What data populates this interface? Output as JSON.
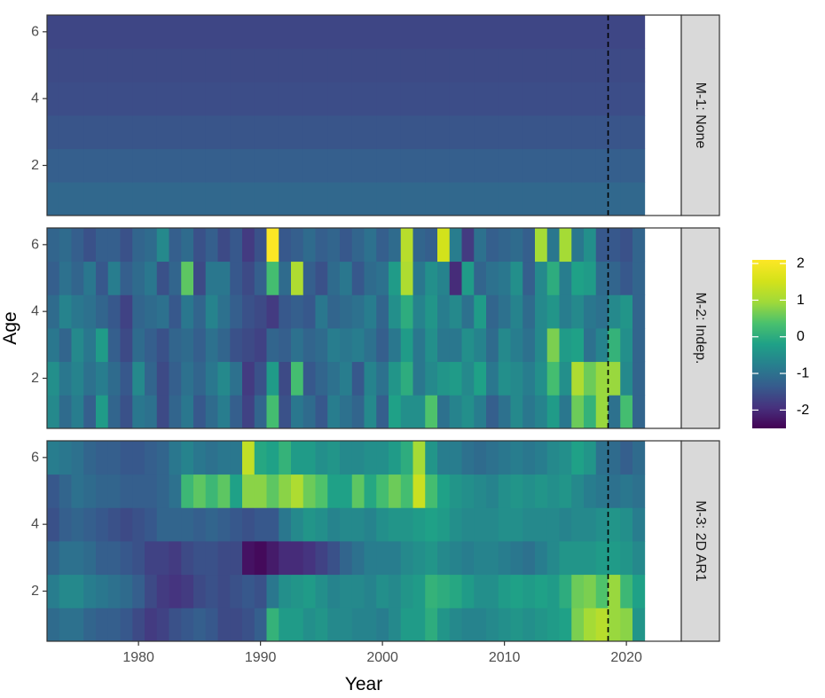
{
  "chart_data": {
    "type": "heatmap",
    "xlabel": "Year",
    "ylabel": "Age",
    "x_ticks": [
      1980,
      1990,
      2000,
      2010,
      2020
    ],
    "y_ticks": [
      2,
      4,
      6
    ],
    "xlim": [
      1972.5,
      2024.5
    ],
    "ylim": [
      0.5,
      6.5
    ],
    "years": [
      1973,
      2021
    ],
    "ages": [
      1,
      6
    ],
    "reference_line": {
      "year": 2018.5,
      "style": "dashed"
    },
    "colorscale": "viridis",
    "color_range": [
      -2.5,
      2.1
    ],
    "legend": {
      "placement": "right",
      "ticks": [
        "2",
        "1",
        "0",
        "-1",
        "-2"
      ],
      "tick_values": [
        2,
        1,
        0,
        -1,
        -2
      ]
    },
    "panels": [
      {
        "label": "M-1:  None",
        "values": [
          [
            -1.15,
            -1.15,
            -1.15,
            -1.15,
            -1.15,
            -1.15,
            -1.15,
            -1.15,
            -1.15,
            -1.15,
            -1.15,
            -1.15,
            -1.15,
            -1.15,
            -1.15,
            -1.15,
            -1.15,
            -1.15,
            -1.15,
            -1.15,
            -1.15,
            -1.15,
            -1.15,
            -1.15,
            -1.15,
            -1.15,
            -1.15,
            -1.15,
            -1.15,
            -1.15,
            -1.15,
            -1.15,
            -1.15,
            -1.15,
            -1.15,
            -1.15,
            -1.15,
            -1.15,
            -1.15,
            -1.15,
            -1.15,
            -1.15,
            -1.15,
            -1.15,
            -1.15,
            -1.15,
            -1.15,
            -1.15,
            -1.15
          ],
          [
            -1.3,
            -1.3,
            -1.3,
            -1.3,
            -1.3,
            -1.3,
            -1.3,
            -1.3,
            -1.3,
            -1.3,
            -1.3,
            -1.3,
            -1.3,
            -1.3,
            -1.3,
            -1.3,
            -1.3,
            -1.3,
            -1.3,
            -1.3,
            -1.3,
            -1.3,
            -1.3,
            -1.3,
            -1.3,
            -1.3,
            -1.3,
            -1.3,
            -1.3,
            -1.3,
            -1.3,
            -1.3,
            -1.3,
            -1.3,
            -1.3,
            -1.3,
            -1.3,
            -1.3,
            -1.3,
            -1.3,
            -1.3,
            -1.3,
            -1.3,
            -1.3,
            -1.3,
            -1.3,
            -1.3,
            -1.3,
            -1.3
          ],
          [
            -1.45,
            -1.45,
            -1.45,
            -1.45,
            -1.45,
            -1.45,
            -1.45,
            -1.45,
            -1.45,
            -1.45,
            -1.45,
            -1.45,
            -1.45,
            -1.45,
            -1.45,
            -1.45,
            -1.45,
            -1.45,
            -1.45,
            -1.45,
            -1.45,
            -1.45,
            -1.45,
            -1.45,
            -1.45,
            -1.45,
            -1.45,
            -1.45,
            -1.45,
            -1.45,
            -1.45,
            -1.45,
            -1.45,
            -1.45,
            -1.45,
            -1.45,
            -1.45,
            -1.45,
            -1.45,
            -1.45,
            -1.45,
            -1.45,
            -1.45,
            -1.45,
            -1.45,
            -1.45,
            -1.45,
            -1.45,
            -1.45
          ],
          [
            -1.55,
            -1.55,
            -1.55,
            -1.55,
            -1.55,
            -1.55,
            -1.55,
            -1.55,
            -1.55,
            -1.55,
            -1.55,
            -1.55,
            -1.55,
            -1.55,
            -1.55,
            -1.55,
            -1.55,
            -1.55,
            -1.55,
            -1.55,
            -1.55,
            -1.55,
            -1.55,
            -1.55,
            -1.55,
            -1.55,
            -1.55,
            -1.55,
            -1.55,
            -1.55,
            -1.55,
            -1.55,
            -1.55,
            -1.55,
            -1.55,
            -1.55,
            -1.55,
            -1.55,
            -1.55,
            -1.55,
            -1.55,
            -1.55,
            -1.55,
            -1.55,
            -1.55,
            -1.55,
            -1.55,
            -1.55,
            -1.55
          ],
          [
            -1.6,
            -1.6,
            -1.6,
            -1.6,
            -1.6,
            -1.6,
            -1.6,
            -1.6,
            -1.6,
            -1.6,
            -1.6,
            -1.6,
            -1.6,
            -1.6,
            -1.6,
            -1.6,
            -1.6,
            -1.6,
            -1.6,
            -1.6,
            -1.6,
            -1.6,
            -1.6,
            -1.6,
            -1.6,
            -1.6,
            -1.6,
            -1.6,
            -1.6,
            -1.6,
            -1.6,
            -1.6,
            -1.6,
            -1.6,
            -1.6,
            -1.6,
            -1.6,
            -1.6,
            -1.6,
            -1.6,
            -1.6,
            -1.6,
            -1.6,
            -1.6,
            -1.6,
            -1.6,
            -1.6,
            -1.6,
            -1.6
          ],
          [
            -1.65,
            -1.65,
            -1.65,
            -1.65,
            -1.65,
            -1.65,
            -1.65,
            -1.65,
            -1.65,
            -1.65,
            -1.65,
            -1.65,
            -1.65,
            -1.65,
            -1.65,
            -1.65,
            -1.65,
            -1.65,
            -1.65,
            -1.65,
            -1.65,
            -1.65,
            -1.65,
            -1.65,
            -1.65,
            -1.65,
            -1.65,
            -1.65,
            -1.65,
            -1.65,
            -1.65,
            -1.65,
            -1.65,
            -1.65,
            -1.65,
            -1.65,
            -1.65,
            -1.65,
            -1.65,
            -1.65,
            -1.65,
            -1.65,
            -1.65,
            -1.65,
            -1.65,
            -1.65,
            -1.65,
            -1.65,
            -1.65
          ]
        ]
      },
      {
        "label": "M-2:  Indep.",
        "values": [
          [
            -0.6,
            -1.1,
            -0.8,
            -1.3,
            -0.3,
            -1.2,
            -1.5,
            -0.9,
            -1.0,
            -1.6,
            -1.2,
            -0.9,
            -1.4,
            -1.1,
            -0.8,
            -1.3,
            -1.7,
            -1.2,
            0.3,
            -1.5,
            -0.9,
            -1.1,
            -1.4,
            -0.8,
            -1.0,
            -1.2,
            -0.6,
            -1.3,
            -0.2,
            -0.5,
            -0.5,
            0.4,
            -1.0,
            -0.7,
            -0.5,
            -0.8,
            -1.3,
            -1.0,
            -0.6,
            -0.9,
            -0.7,
            -0.3,
            -0.9,
            0.6,
            0.1,
            0.9,
            -1.0,
            0.3,
            -1.2
          ],
          [
            -0.5,
            -0.9,
            -0.7,
            -1.0,
            -0.8,
            -1.1,
            -1.4,
            -0.6,
            -1.2,
            -1.6,
            -1.3,
            -1.0,
            -1.2,
            -0.9,
            -0.6,
            -1.0,
            -1.8,
            -1.5,
            -0.3,
            -1.6,
            0.3,
            -1.4,
            -1.2,
            -1.0,
            -0.8,
            -1.4,
            -0.7,
            -1.0,
            -0.4,
            0.0,
            -0.9,
            -0.6,
            -0.4,
            -0.3,
            -0.6,
            -0.2,
            -0.9,
            -0.5,
            -0.6,
            -0.8,
            -0.5,
            0.3,
            -0.5,
            1.1,
            0.6,
            0.9,
            0.9,
            -0.6,
            -1.2
          ],
          [
            -0.9,
            -1.2,
            -0.6,
            -0.9,
            -0.3,
            -1.3,
            -1.6,
            -1.1,
            -1.3,
            -1.5,
            -1.2,
            -1.1,
            -1.3,
            -1.0,
            -1.2,
            -1.5,
            -1.6,
            -1.7,
            -1.2,
            -1.3,
            -1.0,
            -1.2,
            -1.1,
            -0.8,
            -0.9,
            -0.8,
            -1.0,
            -1.3,
            -0.9,
            -0.3,
            -0.9,
            -0.5,
            -0.9,
            -0.9,
            -0.5,
            -0.7,
            -1.1,
            -0.6,
            -0.8,
            -1.0,
            -0.6,
            0.7,
            -0.3,
            -0.2,
            -1.0,
            -0.7,
            0.1,
            -0.5,
            -1.2
          ],
          [
            -1.1,
            -0.7,
            -0.9,
            -1.0,
            -1.2,
            -1.4,
            -1.7,
            -1.2,
            -1.1,
            -1.0,
            -1.4,
            -0.9,
            -1.2,
            -0.7,
            -1.0,
            -1.3,
            -1.5,
            -1.6,
            -1.8,
            -1.4,
            -1.3,
            -1.4,
            -0.9,
            -1.2,
            -1.1,
            -1.0,
            -0.8,
            -1.2,
            -0.5,
            0.0,
            -0.7,
            -0.4,
            -0.8,
            -0.6,
            -1.0,
            -0.3,
            -1.2,
            -1.0,
            -0.7,
            -1.1,
            -0.6,
            -0.4,
            -0.8,
            -0.6,
            -0.9,
            -1.0,
            -0.6,
            -0.4,
            -1.2
          ],
          [
            -1.3,
            -1.0,
            -1.2,
            -0.9,
            -1.4,
            -0.8,
            -1.3,
            -1.1,
            -0.9,
            -1.5,
            -1.2,
            0.5,
            -1.6,
            -0.9,
            -0.9,
            -1.4,
            -1.6,
            -1.3,
            0.3,
            -1.1,
            1.1,
            -1.3,
            -1.5,
            -1.1,
            -0.9,
            -1.4,
            -1.1,
            -1.0,
            -0.3,
            1.1,
            -0.9,
            -0.5,
            -0.7,
            -2.0,
            -0.3,
            -1.2,
            -1.0,
            -0.9,
            -0.5,
            -1.3,
            -0.6,
            0.0,
            -0.8,
            -0.2,
            -0.3,
            -1.1,
            -1.2,
            -1.4,
            -1.2
          ],
          [
            -1.2,
            -1.1,
            -1.3,
            -1.5,
            -1.3,
            -1.3,
            -1.5,
            -1.2,
            -1.1,
            -0.6,
            -1.3,
            -1.1,
            -1.5,
            -1.3,
            -1.6,
            -1.4,
            -1.8,
            -1.5,
            2.1,
            -1.4,
            -1.3,
            -1.1,
            -1.3,
            -1.2,
            -1.4,
            -1.2,
            -1.0,
            -1.3,
            -1.1,
            1.2,
            -1.2,
            -1.3,
            1.5,
            -0.8,
            -1.8,
            -1.0,
            -1.3,
            -1.2,
            -1.1,
            -1.3,
            1.0,
            -0.9,
            1.0,
            -0.9,
            -0.5,
            -1.4,
            -1.4,
            -1.5,
            -1.2
          ]
        ]
      },
      {
        "label": "M-3:  2D  AR1",
        "values": [
          [
            -1.1,
            -1.0,
            -1.0,
            -1.2,
            -1.3,
            -1.3,
            -1.4,
            -1.6,
            -1.8,
            -1.7,
            -1.5,
            -1.4,
            -1.3,
            -1.4,
            -1.6,
            -1.6,
            -1.5,
            -1.3,
            0.1,
            -0.3,
            -0.3,
            -0.5,
            -0.4,
            -0.6,
            -0.6,
            -0.7,
            -0.7,
            -0.8,
            -0.6,
            -0.3,
            -0.3,
            0.0,
            -0.4,
            -0.6,
            -0.7,
            -0.7,
            -0.6,
            -0.5,
            -0.4,
            -0.5,
            -0.4,
            -0.3,
            -0.2,
            0.7,
            1.0,
            1.2,
            0.9,
            0.8,
            -0.4
          ],
          [
            -0.8,
            -0.6,
            -0.6,
            -0.8,
            -0.9,
            -1.0,
            -1.1,
            -1.3,
            -1.6,
            -1.8,
            -1.9,
            -1.8,
            -1.6,
            -1.5,
            -1.6,
            -1.5,
            -1.4,
            -1.5,
            -0.9,
            -0.5,
            -0.4,
            -0.3,
            -0.5,
            -0.7,
            -0.6,
            -0.6,
            -0.7,
            -0.5,
            -0.6,
            -0.4,
            -0.3,
            0.1,
            0.0,
            -0.1,
            -0.3,
            -0.5,
            -0.5,
            -0.3,
            -0.2,
            -0.3,
            -0.2,
            -0.3,
            0.0,
            0.6,
            0.7,
            0.4,
            0.9,
            0.2,
            -0.2
          ],
          [
            -1.2,
            -1.0,
            -1.0,
            -1.1,
            -1.3,
            -1.3,
            -1.4,
            -1.5,
            -1.7,
            -1.7,
            -1.8,
            -1.6,
            -1.5,
            -1.5,
            -1.6,
            -1.6,
            -2.3,
            -2.4,
            -2.2,
            -2.0,
            -2.0,
            -1.9,
            -1.7,
            -1.5,
            -1.2,
            -1.0,
            -0.8,
            -0.8,
            -0.8,
            -0.6,
            -0.5,
            -0.4,
            -0.6,
            -0.7,
            -0.8,
            -0.7,
            -0.7,
            -0.8,
            -0.9,
            -1.0,
            -0.8,
            -0.6,
            -0.4,
            -0.4,
            -0.4,
            -0.3,
            -0.3,
            -0.4,
            -0.6
          ],
          [
            -1.5,
            -1.3,
            -1.2,
            -1.3,
            -1.4,
            -1.5,
            -1.6,
            -1.5,
            -1.4,
            -1.2,
            -1.2,
            -1.2,
            -1.3,
            -1.2,
            -1.3,
            -1.4,
            -1.5,
            -1.4,
            -1.4,
            -0.9,
            -0.6,
            -0.4,
            -0.5,
            -0.7,
            -0.6,
            -0.6,
            -0.7,
            -0.5,
            -0.4,
            -0.4,
            -0.3,
            -0.2,
            -0.3,
            -0.5,
            -0.6,
            -0.6,
            -0.6,
            -0.5,
            -0.5,
            -0.6,
            -0.6,
            -0.6,
            -0.7,
            -0.6,
            -0.6,
            -0.5,
            -0.4,
            -0.5,
            -0.8
          ],
          [
            -1.4,
            -1.2,
            -1.0,
            -1.1,
            -1.2,
            -1.2,
            -1.3,
            -1.3,
            -1.3,
            -1.2,
            -1.0,
            0.2,
            0.5,
            0.2,
            0.5,
            -0.2,
            0.8,
            0.8,
            0.5,
            0.8,
            1.1,
            0.6,
            0.4,
            -0.2,
            -0.2,
            0.5,
            -0.1,
            0.3,
            0.6,
            0.3,
            1.4,
            0.3,
            -0.2,
            -0.4,
            -0.5,
            -0.6,
            -0.7,
            -0.5,
            -0.4,
            -0.5,
            -0.4,
            -0.5,
            -0.4,
            -0.6,
            -0.8,
            -0.9,
            -1.0,
            -0.9,
            -1.0
          ],
          [
            -0.8,
            -0.9,
            -1.0,
            -1.2,
            -1.3,
            -1.3,
            -1.4,
            -1.4,
            -1.3,
            -1.2,
            -0.9,
            -0.7,
            -0.9,
            -1.0,
            -0.9,
            -0.9,
            1.3,
            -0.1,
            -0.2,
            0.1,
            -0.3,
            -0.3,
            -0.5,
            -0.4,
            -0.6,
            -0.6,
            -0.5,
            -0.5,
            -0.3,
            0.0,
            1.0,
            -0.4,
            -0.8,
            -0.8,
            -1.0,
            -1.1,
            -1.0,
            -0.9,
            -0.8,
            -0.9,
            -0.8,
            -0.6,
            -0.5,
            -0.2,
            -0.4,
            -1.0,
            -1.1,
            -1.3,
            -1.1
          ]
        ]
      }
    ]
  }
}
